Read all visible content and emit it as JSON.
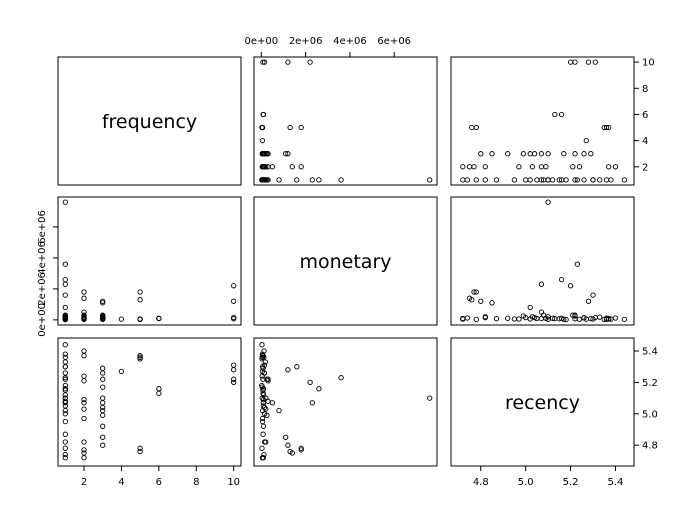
{
  "chart_data": {
    "type": "scatter",
    "title": "",
    "variables": [
      "frequency",
      "monetary",
      "recency"
    ],
    "ranges": {
      "frequency": [
        1,
        10
      ],
      "monetary": [
        0,
        7600000
      ],
      "recency": [
        4.7,
        5.45
      ]
    },
    "ticks": {
      "frequency": [
        {
          "v": 2,
          "label": "2"
        },
        {
          "v": 4,
          "label": "4"
        },
        {
          "v": 6,
          "label": "6"
        },
        {
          "v": 8,
          "label": "8"
        },
        {
          "v": 10,
          "label": "10"
        }
      ],
      "monetary": [
        {
          "v": 0,
          "label": "0e+00"
        },
        {
          "v": 2000000,
          "label": "2e+06"
        },
        {
          "v": 4000000,
          "label": "4e+06"
        },
        {
          "v": 6000000,
          "label": "6e+06"
        }
      ],
      "recency": [
        {
          "v": 4.8,
          "label": "4.8"
        },
        {
          "v": 5.0,
          "label": "5.0"
        },
        {
          "v": 5.2,
          "label": "5.2"
        },
        {
          "v": 5.4,
          "label": "5.4"
        }
      ]
    },
    "points": [
      [
        1,
        50000,
        4.72
      ],
      [
        1,
        120000,
        4.74
      ],
      [
        1,
        30000,
        4.78
      ],
      [
        1,
        200000,
        4.82
      ],
      [
        1,
        80000,
        4.87
      ],
      [
        1,
        60000,
        4.95
      ],
      [
        1,
        150000,
        5.0
      ],
      [
        1,
        90000,
        5.05
      ],
      [
        1,
        300000,
        5.08
      ],
      [
        1,
        40000,
        5.1
      ],
      [
        1,
        100000,
        5.12
      ],
      [
        1,
        70000,
        5.15
      ],
      [
        1,
        20000,
        5.18
      ],
      [
        1,
        250000,
        5.22
      ],
      [
        1,
        140000,
        5.26
      ],
      [
        1,
        60000,
        5.3
      ],
      [
        1,
        180000,
        5.33
      ],
      [
        1,
        110000,
        5.36
      ],
      [
        1,
        50000,
        5.38
      ],
      [
        1,
        30000,
        5.44
      ],
      [
        1,
        7600000,
        5.1
      ],
      [
        1,
        3600000,
        5.23
      ],
      [
        1,
        2600000,
        5.16
      ],
      [
        1,
        2300000,
        5.07
      ],
      [
        1,
        1600000,
        5.3
      ],
      [
        1,
        800000,
        5.02
      ],
      [
        2,
        90000,
        4.72
      ],
      [
        2,
        150000,
        4.82
      ],
      [
        2,
        60000,
        4.97
      ],
      [
        2,
        1800000,
        4.77
      ],
      [
        2,
        200000,
        5.03
      ],
      [
        2,
        1400000,
        4.75
      ],
      [
        2,
        100000,
        5.09
      ],
      [
        2,
        500000,
        5.07
      ],
      [
        2,
        300000,
        5.21
      ],
      [
        2,
        80000,
        5.37
      ],
      [
        2,
        40000,
        5.24
      ],
      [
        2,
        120000,
        5.4
      ],
      [
        3,
        1200000,
        4.8
      ],
      [
        3,
        1100000,
        4.85
      ],
      [
        3,
        100000,
        4.92
      ],
      [
        3,
        250000,
        4.99
      ],
      [
        3,
        60000,
        5.02
      ],
      [
        3,
        150000,
        5.04
      ],
      [
        3,
        90000,
        5.07
      ],
      [
        3,
        200000,
        5.1
      ],
      [
        3,
        40000,
        5.17
      ],
      [
        3,
        300000,
        5.22
      ],
      [
        3,
        80000,
        5.29
      ],
      [
        3,
        130000,
        5.26
      ],
      [
        4,
        50000,
        5.27
      ],
      [
        5,
        1300000,
        4.76
      ],
      [
        5,
        1800000,
        4.78
      ],
      [
        5,
        30000,
        5.35
      ],
      [
        5,
        40000,
        5.36
      ],
      [
        5,
        60000,
        5.37
      ],
      [
        6,
        80000,
        5.13
      ],
      [
        6,
        100000,
        5.16
      ],
      [
        10,
        2200000,
        5.2
      ],
      [
        10,
        1200000,
        5.28
      ],
      [
        10,
        150000,
        5.31
      ],
      [
        10,
        70000,
        5.22
      ]
    ]
  }
}
